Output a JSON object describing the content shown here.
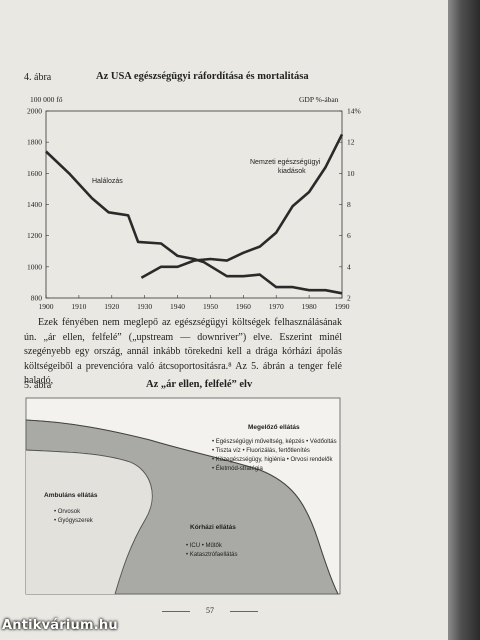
{
  "figure4": {
    "label": "4. ábra",
    "title": "Az USA egészségügyi ráfordítása és mortalitása",
    "left_unit": "100 000 fő",
    "right_unit": "GDP %-ában"
  },
  "chart_data": {
    "type": "line",
    "title": "Az USA egészségügyi ráfordítása és mortalitása",
    "x_ticks": [
      "1900",
      "1910",
      "1920",
      "1930",
      "1940",
      "1950",
      "1960",
      "1970",
      "1980",
      "1990"
    ],
    "xlim": [
      1900,
      1990
    ],
    "y_left": {
      "label": "100 000 fő",
      "ticks": [
        "800",
        "1000",
        "1200",
        "1400",
        "1600",
        "1800",
        "2000"
      ],
      "lim": [
        800,
        2000
      ]
    },
    "y_right": {
      "label": "GDP %-ában",
      "ticks": [
        "2",
        "4",
        "6",
        "8",
        "10",
        "12",
        "14%"
      ],
      "lim": [
        2,
        14
      ]
    },
    "series": [
      {
        "name": "Halálozás",
        "axis": "left",
        "x": [
          1900,
          1907,
          1914,
          1919,
          1925,
          1928,
          1935,
          1940,
          1945,
          1948,
          1955,
          1960,
          1965,
          1970,
          1975,
          1980,
          1985,
          1990
        ],
        "y": [
          1740,
          1600,
          1440,
          1350,
          1330,
          1160,
          1150,
          1070,
          1050,
          1030,
          940,
          940,
          950,
          870,
          870,
          850,
          850,
          830
        ]
      },
      {
        "name": "Nemzeti egészségügyi kiadások",
        "axis": "right",
        "x": [
          1929,
          1935,
          1940,
          1945,
          1950,
          1955,
          1960,
          1965,
          1970,
          1975,
          1980,
          1985,
          1990
        ],
        "y": [
          3.3,
          4.0,
          4.0,
          4.4,
          4.5,
          4.4,
          4.9,
          5.3,
          6.2,
          7.9,
          8.8,
          10.4,
          12.5
        ]
      }
    ],
    "annotations": [
      {
        "text": "Halálozás"
      },
      {
        "text": "Nemzeti egészségügyi kiadások"
      }
    ],
    "grid": false
  },
  "body_text": "Ezek fényében nem meglepő az egészségügyi költségek felhasználásának ún. „ár ellen, felfelé” („upstream — downriver”) elve. Eszerint minél szegényebb egy ország, annál inkább törekedni kell a drága kórházi ápolás költségeiből a prevencióra való átcsoportosításra.⁸ Az 5. ábrán a tenger felé haladó,",
  "figure5": {
    "label": "5. ábra",
    "title": "Az „ár ellen, felfelé” elv",
    "prevention": {
      "heading": "Megelőző ellátás",
      "items": [
        "• Egészségügyi műveltség, képzés  • Védőoltás",
        "• Tiszta víz  • Fluorizálás, fertőtlenítés",
        "• Közegészségügy, higiénia  • Orvosi rendelők",
        "• Életmód-stratégia"
      ]
    },
    "ambulatory": {
      "heading": "Ambuláns ellátás",
      "items": [
        "• Orvosok",
        "• Gyógyszerek"
      ]
    },
    "hospital": {
      "heading": "Kórházi ellátás",
      "items": [
        "• ICU  • Műtők",
        "• Katasztrófaellátás"
      ]
    }
  },
  "page_number": "57",
  "watermark": "Antikvárium.hu"
}
